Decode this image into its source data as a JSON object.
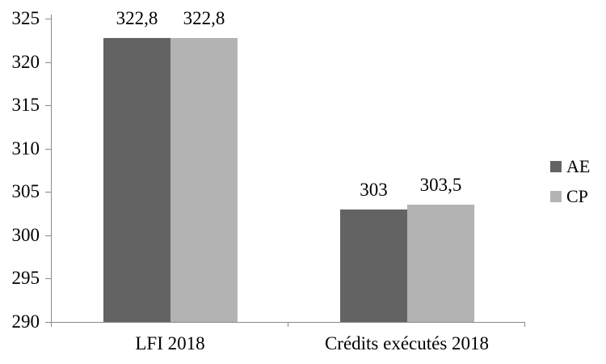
{
  "chart_data": {
    "type": "bar",
    "categories": [
      "LFI 2018",
      "Crédits exécutés 2018"
    ],
    "series": [
      {
        "name": "AE",
        "color": "#636363",
        "values": [
          322.8,
          303
        ],
        "value_labels": [
          "322,8",
          "303"
        ]
      },
      {
        "name": "CP",
        "color": "#b3b3b3",
        "values": [
          322.8,
          303.5
        ],
        "value_labels": [
          "322,8",
          "303,5"
        ]
      }
    ],
    "ylim": [
      290,
      325
    ],
    "yticks": [
      290,
      295,
      300,
      305,
      310,
      315,
      320,
      325
    ],
    "ytick_labels": [
      "290",
      "295",
      "300",
      "305",
      "310",
      "315",
      "320",
      "325"
    ],
    "grid": false,
    "legend_position": "right",
    "legend_entries": [
      "AE",
      "CP"
    ],
    "axis_color": "#8a8a8a",
    "text_color": "#000000"
  }
}
